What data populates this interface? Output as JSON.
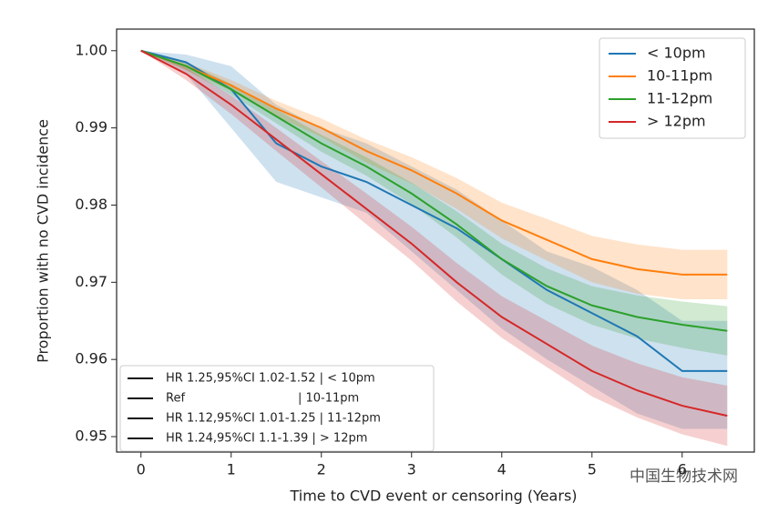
{
  "chart_data": {
    "type": "line",
    "xlabel": "Time to CVD event or censoring (Years)",
    "ylabel": "Proportion with no CVD incidence",
    "x": [
      0,
      0.5,
      1,
      1.5,
      2,
      2.5,
      3,
      3.5,
      4,
      4.5,
      5,
      5.5,
      6,
      6.5
    ],
    "series": [
      {
        "name": "< 10pm",
        "color": "#1f77b4",
        "values": [
          1.0,
          0.9985,
          0.995,
          0.988,
          0.985,
          0.983,
          0.98,
          0.977,
          0.973,
          0.969,
          0.966,
          0.963,
          0.9585,
          0.9585
        ],
        "lower": [
          1.0,
          0.997,
          0.99,
          0.983,
          0.981,
          0.979,
          0.974,
          0.969,
          0.964,
          0.96,
          0.9565,
          0.953,
          0.951,
          0.951
        ],
        "upper": [
          1.0,
          0.9995,
          0.998,
          0.993,
          0.99,
          0.988,
          0.985,
          0.982,
          0.978,
          0.974,
          0.972,
          0.969,
          0.965,
          0.965
        ]
      },
      {
        "name": "10-11pm",
        "color": "#ff7f0e",
        "values": [
          1.0,
          0.998,
          0.9955,
          0.9925,
          0.99,
          0.987,
          0.9845,
          0.9815,
          0.978,
          0.9755,
          0.973,
          0.9717,
          0.971,
          0.971
        ],
        "lower": [
          1.0,
          0.9975,
          0.9948,
          0.9915,
          0.9888,
          0.9855,
          0.9828,
          0.9795,
          0.9757,
          0.9728,
          0.97,
          0.9685,
          0.9678,
          0.9678
        ],
        "upper": [
          1.0,
          0.9985,
          0.9962,
          0.9935,
          0.9912,
          0.9885,
          0.9862,
          0.9835,
          0.9803,
          0.9782,
          0.976,
          0.9749,
          0.9742,
          0.9742
        ]
      },
      {
        "name": "11-12pm",
        "color": "#2ca02c",
        "values": [
          1.0,
          0.998,
          0.995,
          0.9915,
          0.988,
          0.985,
          0.9815,
          0.9775,
          0.973,
          0.9695,
          0.967,
          0.9655,
          0.9645,
          0.9637
        ],
        "lower": [
          1.0,
          0.9975,
          0.9943,
          0.9906,
          0.9869,
          0.9838,
          0.9801,
          0.9758,
          0.971,
          0.9672,
          0.9645,
          0.9627,
          0.9615,
          0.9605
        ],
        "upper": [
          1.0,
          0.9985,
          0.9957,
          0.9924,
          0.9891,
          0.9862,
          0.9829,
          0.9792,
          0.975,
          0.9718,
          0.9695,
          0.9683,
          0.9675,
          0.9669
        ]
      },
      {
        "name": "> 12pm",
        "color": "#d62728",
        "values": [
          1.0,
          0.997,
          0.993,
          0.9885,
          0.984,
          0.9795,
          0.975,
          0.97,
          0.9655,
          0.962,
          0.9585,
          0.956,
          0.954,
          0.9527
        ],
        "lower": [
          1.0,
          0.9962,
          0.9918,
          0.987,
          0.9823,
          0.9775,
          0.9728,
          0.9675,
          0.9628,
          0.959,
          0.9552,
          0.9525,
          0.9503,
          0.9488
        ],
        "upper": [
          1.0,
          0.9978,
          0.9942,
          0.99,
          0.9857,
          0.9815,
          0.9772,
          0.9725,
          0.9682,
          0.965,
          0.9618,
          0.9595,
          0.9577,
          0.9566
        ]
      }
    ],
    "xlim": [
      -0.27,
      6.8
    ],
    "ylim": [
      0.948,
      1.0028
    ],
    "xticks": [
      0,
      1,
      2,
      3,
      4,
      5,
      6
    ],
    "yticks": [
      0.95,
      0.96,
      0.97,
      0.98,
      0.99,
      {
        "value": 1.0,
        "label": "1.00"
      }
    ],
    "legend": "upper right",
    "hr_legend": [
      "HR 1.25,95%CI 1.02-1.52 | < 10pm",
      "Ref                              | 10-11pm",
      "HR 1.12,95%CI 1.01-1.25 | 11-12pm",
      "HR 1.24,95%CI 1.1-1.39 | > 12pm"
    ],
    "watermark": "中国生物技术网"
  }
}
